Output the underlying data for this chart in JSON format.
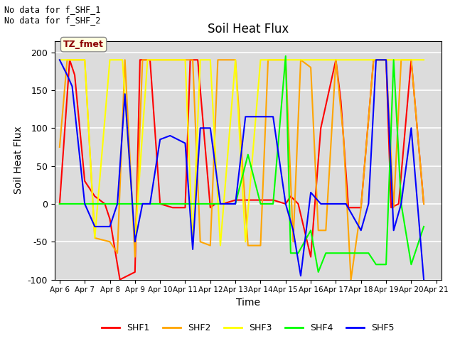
{
  "title": "Soil Heat Flux",
  "ylabel": "Soil Heat Flux",
  "xlabel": "Time",
  "annotation_lines": [
    "No data for f_SHF_1",
    "No data for f_SHF_2"
  ],
  "legend_label": "TZ_fmet",
  "background_color": "#dcdcdc",
  "ylim": [
    -100,
    215
  ],
  "series": {
    "SHF1": {
      "color": "red",
      "x": [
        6.0,
        6.4,
        6.6,
        7.0,
        7.4,
        7.8,
        8.0,
        8.4,
        9.0,
        9.2,
        9.4,
        9.6,
        10.0,
        10.5,
        11.0,
        11.2,
        11.5,
        12.0,
        12.2,
        12.5,
        13.0,
        13.5,
        14.0,
        14.5,
        15.0,
        15.2,
        15.5,
        16.0,
        16.4,
        17.0,
        17.2,
        17.5,
        18.0,
        18.5,
        19.0,
        19.2,
        19.5,
        20.0,
        20.5
      ],
      "y": [
        0,
        190,
        170,
        30,
        10,
        0,
        -20,
        -100,
        -90,
        190,
        190,
        190,
        0,
        -5,
        -5,
        190,
        190,
        -5,
        0,
        0,
        5,
        5,
        5,
        5,
        0,
        10,
        0,
        -70,
        100,
        190,
        135,
        -5,
        -5,
        190,
        190,
        -5,
        0,
        190,
        0
      ]
    },
    "SHF2": {
      "color": "orange",
      "x": [
        6.0,
        6.3,
        6.6,
        7.0,
        7.4,
        8.0,
        8.3,
        8.6,
        9.0,
        9.3,
        9.6,
        10.0,
        10.3,
        10.6,
        11.0,
        11.3,
        11.6,
        12.0,
        12.3,
        12.6,
        13.0,
        13.5,
        14.0,
        14.3,
        14.6,
        15.0,
        15.3,
        15.6,
        16.0,
        16.3,
        16.6,
        17.0,
        17.3,
        17.6,
        18.0,
        18.5,
        19.0,
        19.3,
        19.6,
        20.0,
        20.5
      ],
      "y": [
        75,
        190,
        190,
        190,
        -45,
        -50,
        -65,
        190,
        -70,
        190,
        190,
        190,
        190,
        190,
        190,
        190,
        -50,
        -55,
        190,
        190,
        190,
        -55,
        -55,
        190,
        190,
        190,
        -50,
        190,
        180,
        -35,
        -35,
        190,
        90,
        -100,
        -5,
        190,
        190,
        -5,
        190,
        190,
        0
      ]
    },
    "SHF3": {
      "color": "yellow",
      "x": [
        6.0,
        7.0,
        7.4,
        8.0,
        8.5,
        9.0,
        9.5,
        10.0,
        10.4,
        11.0,
        11.3,
        11.6,
        12.0,
        12.4,
        13.0,
        13.4,
        14.0,
        14.5,
        15.0,
        15.5,
        16.0,
        16.5,
        17.0,
        17.5,
        18.0,
        18.5,
        19.0,
        19.4,
        20.0,
        20.5
      ],
      "y": [
        190,
        190,
        -45,
        190,
        190,
        -50,
        190,
        190,
        190,
        190,
        -55,
        190,
        190,
        -55,
        190,
        -50,
        190,
        190,
        190,
        190,
        190,
        190,
        190,
        190,
        190,
        190,
        190,
        190,
        190,
        190
      ]
    },
    "SHF4": {
      "color": "lime",
      "x": [
        6.0,
        7.0,
        8.0,
        9.0,
        10.0,
        11.0,
        12.0,
        12.5,
        13.0,
        13.5,
        14.0,
        14.5,
        15.0,
        15.2,
        15.5,
        16.0,
        16.3,
        16.6,
        17.0,
        17.3,
        17.6,
        18.0,
        18.3,
        18.6,
        19.0,
        19.3,
        19.6,
        20.0,
        20.5
      ],
      "y": [
        0,
        0,
        0,
        0,
        0,
        0,
        0,
        0,
        0,
        65,
        0,
        0,
        195,
        -65,
        -65,
        -35,
        -90,
        -65,
        -65,
        -65,
        -65,
        -65,
        -65,
        -80,
        -80,
        190,
        0,
        -80,
        -30
      ]
    },
    "SHF5": {
      "color": "blue",
      "x": [
        6.0,
        6.3,
        6.5,
        7.0,
        7.4,
        8.0,
        8.3,
        8.6,
        9.0,
        9.3,
        9.6,
        10.0,
        10.4,
        11.0,
        11.3,
        11.6,
        12.0,
        12.4,
        13.0,
        13.4,
        14.0,
        14.5,
        15.0,
        15.3,
        15.6,
        16.0,
        16.4,
        17.0,
        17.4,
        18.0,
        18.3,
        18.6,
        19.0,
        19.3,
        19.6,
        20.0,
        20.5
      ],
      "y": [
        190,
        170,
        155,
        0,
        -30,
        -30,
        0,
        145,
        -50,
        0,
        0,
        85,
        90,
        80,
        -60,
        100,
        100,
        0,
        0,
        115,
        115,
        115,
        0,
        -35,
        -95,
        15,
        0,
        0,
        0,
        -35,
        0,
        190,
        190,
        -35,
        0,
        100,
        -100
      ]
    }
  },
  "legend_entries": [
    "SHF1",
    "SHF2",
    "SHF3",
    "SHF4",
    "SHF5"
  ],
  "legend_colors": [
    "red",
    "orange",
    "yellow",
    "lime",
    "blue"
  ],
  "xtick_labels": [
    "Apr 6",
    "Apr 7",
    "Apr 8",
    "Apr 9",
    "Apr 10",
    "Apr 11",
    "Apr 12",
    "Apr 13",
    "Apr 14",
    "Apr 15",
    "Apr 16",
    "Apr 17",
    "Apr 18",
    "Apr 19",
    "Apr 20",
    "Apr 21"
  ],
  "xtick_positions": [
    6,
    7,
    8,
    9,
    10,
    11,
    12,
    13,
    14,
    15,
    16,
    17,
    18,
    19,
    20,
    21
  ],
  "ytick_labels": [
    "-100",
    "-50",
    "0",
    "50",
    "100",
    "150",
    "200"
  ],
  "ytick_positions": [
    -100,
    -50,
    0,
    50,
    100,
    150,
    200
  ]
}
